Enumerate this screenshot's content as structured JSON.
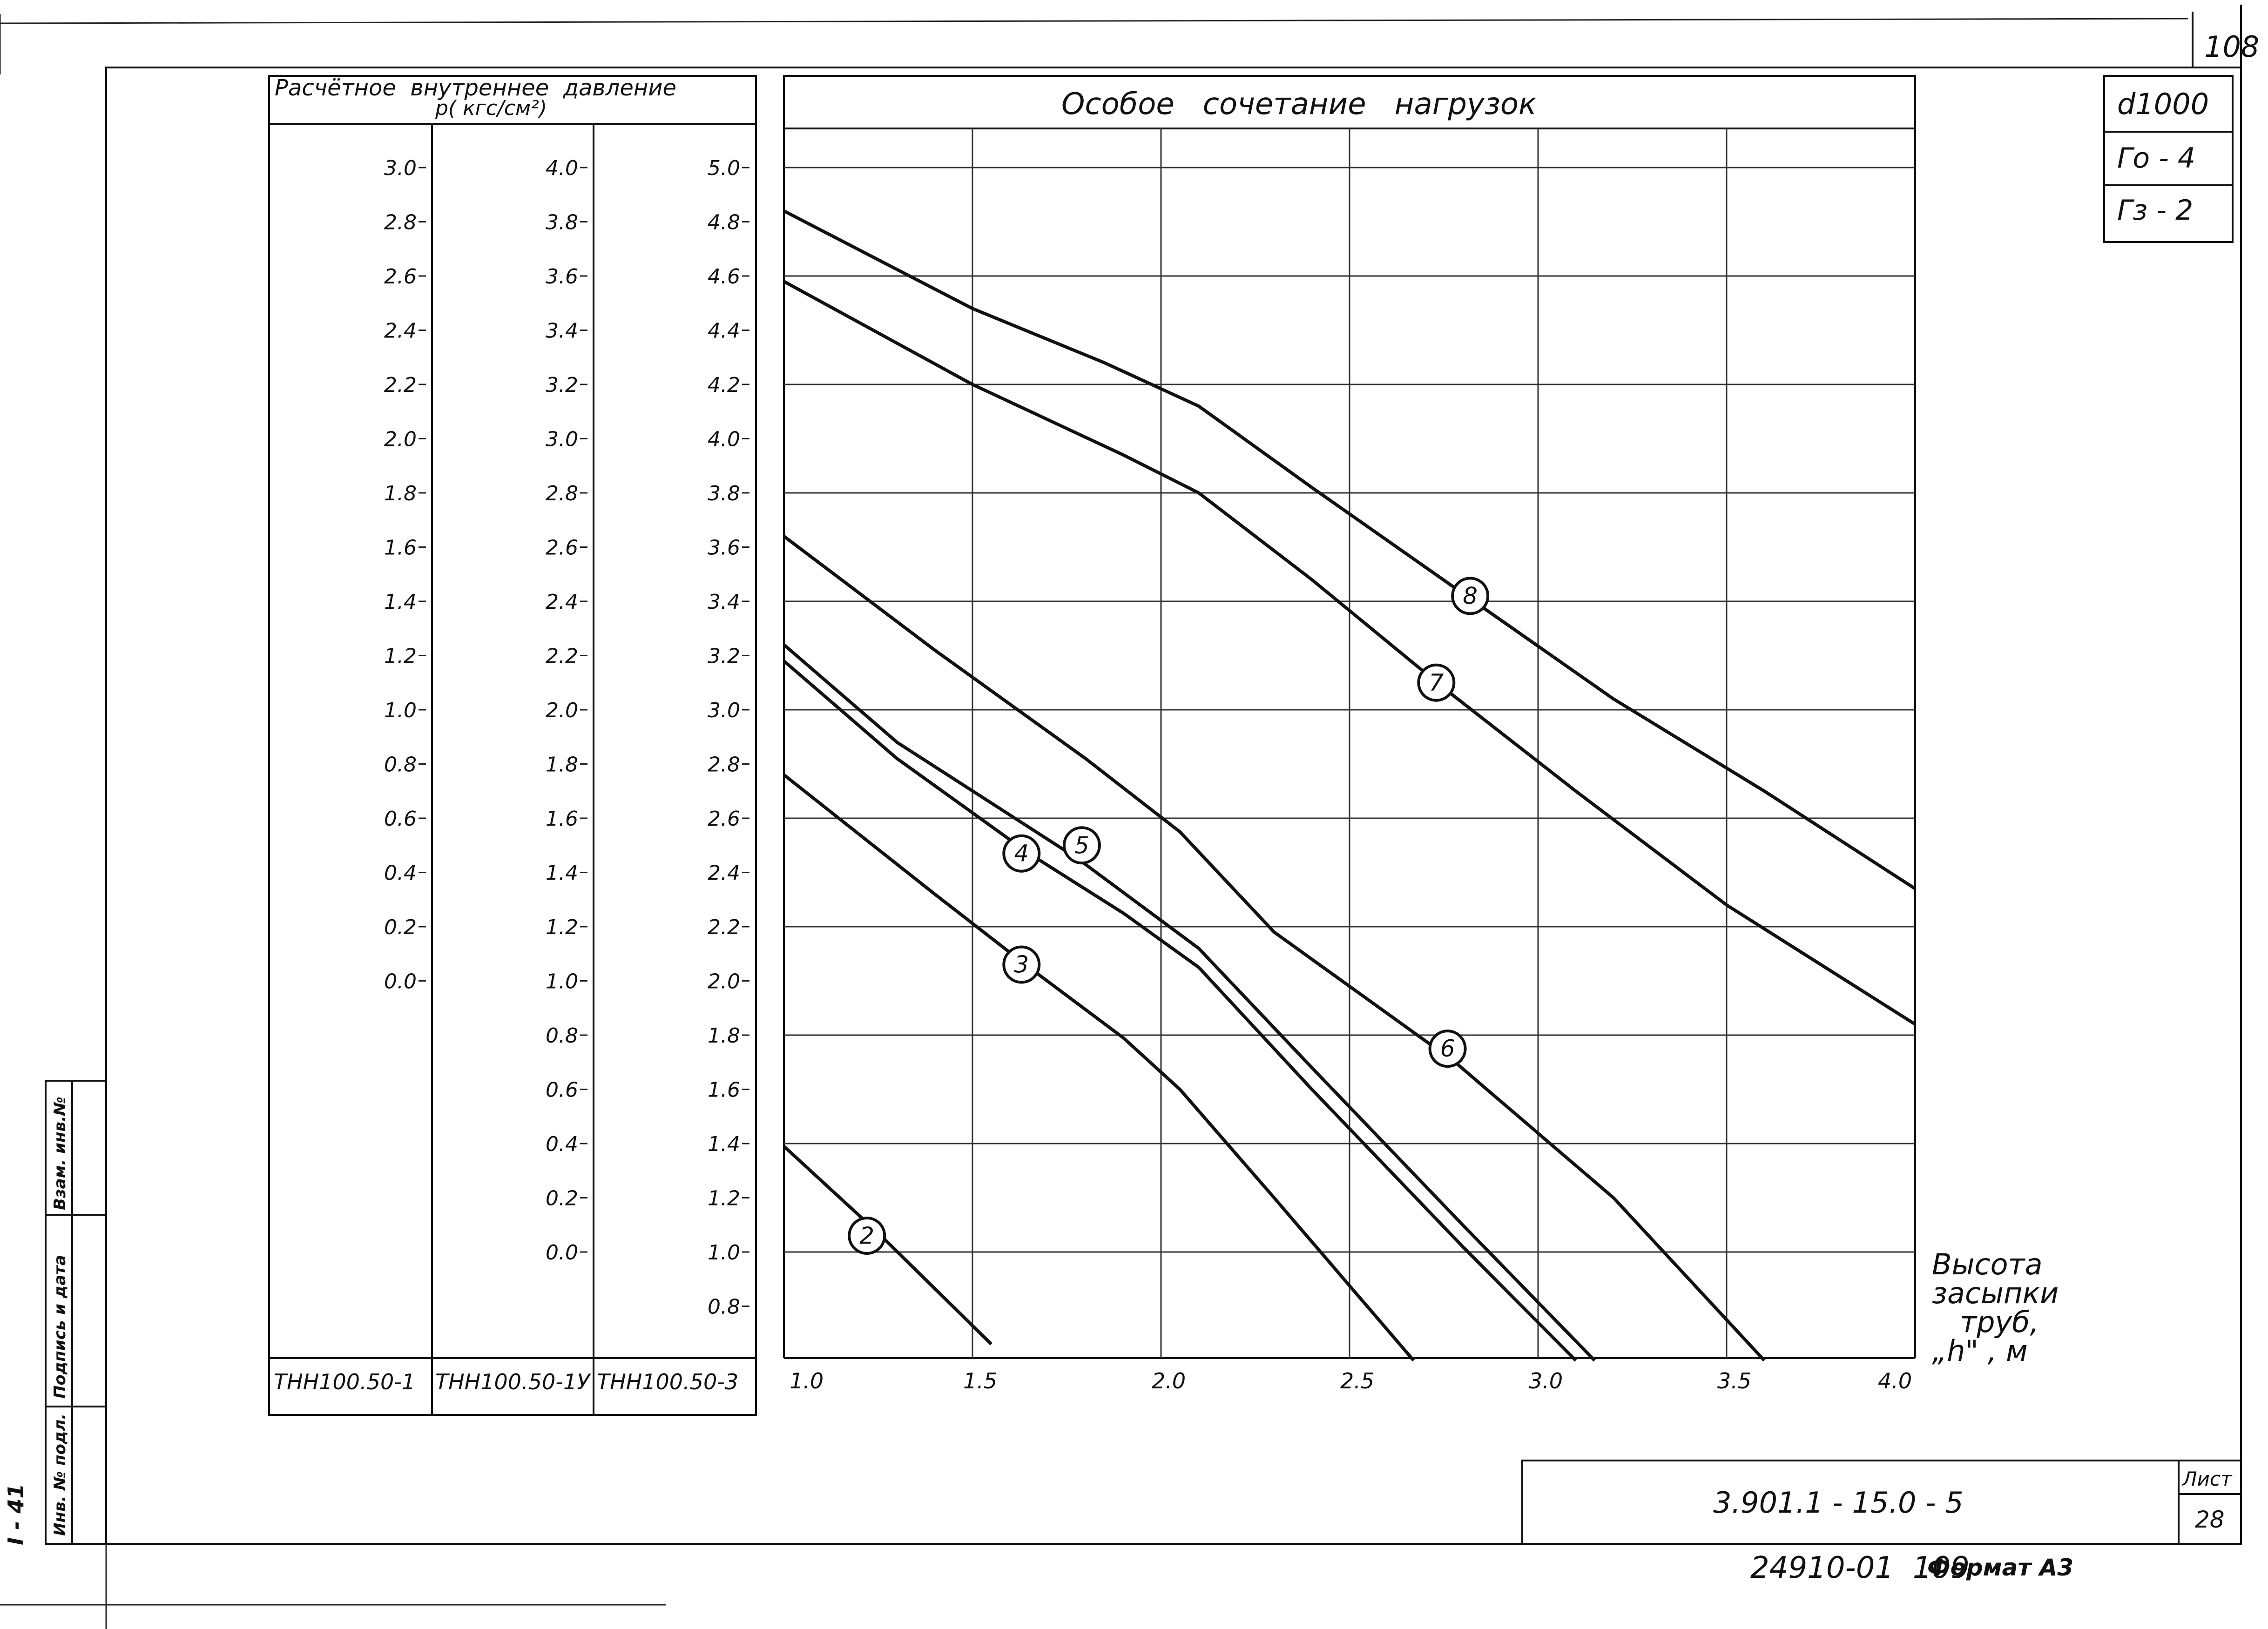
{
  "sheet_corner_number": "108",
  "pressure_header": {
    "line1": "Расчётное  внутреннее  давление",
    "line2": "p( кгс/см²)"
  },
  "chart_header": "Особое   сочетание   нагрузок",
  "spec_box": [
    "d1000",
    "Го - 4",
    "Гз - 2"
  ],
  "scales": [
    {
      "name": "ТНН100.50-1",
      "ticks": [
        "3.0",
        "2.8",
        "2.6",
        "2.4",
        "2.2",
        "2.0",
        "1.8",
        "1.6",
        "1.4",
        "1.2",
        "1.0",
        "0.8",
        "0.6",
        "0.4",
        "0.2",
        "0.0"
      ]
    },
    {
      "name": "ТНН100.50-1У",
      "ticks": [
        "4.0",
        "3.8",
        "3.6",
        "3.4",
        "3.2",
        "3.0",
        "2.8",
        "2.6",
        "2.4",
        "2.2",
        "2.0",
        "1.8",
        "1.6",
        "1.4",
        "1.2",
        "1.0",
        "0.8",
        "0.6",
        "0.4",
        "0.2",
        "0.0"
      ]
    },
    {
      "name": "ТНН100.50-3",
      "ticks": [
        "5.0",
        "4.8",
        "4.6",
        "4.4",
        "4.2",
        "4.0",
        "3.8",
        "3.6",
        "3.4",
        "3.2",
        "3.0",
        "2.8",
        "2.6",
        "2.4",
        "2.2",
        "2.0",
        "1.8",
        "1.6",
        "1.4",
        "1.2",
        "1.0",
        "0.8"
      ]
    }
  ],
  "xaxis_title": [
    "Высота",
    "засыпки",
    "труб,",
    "„h\" , м"
  ],
  "side_stamp": [
    "Взам. инв.№",
    "Подпись и дата",
    "Инв. № подл."
  ],
  "side_code": "I - 41",
  "title_block": {
    "document": "3.901.1 - 15.0 - 5",
    "sheet_label": "Лист",
    "sheet_number": "28"
  },
  "footer": {
    "code": "24910-01  109",
    "format": "Формат А3"
  },
  "chart_data": {
    "type": "line",
    "title": "Особое   сочетание   нагрузок",
    "xlabel": "Высота засыпки труб, „h\" , м",
    "ylabel": "",
    "xlim": [
      1.0,
      4.0
    ],
    "ylim": [
      0.8,
      5.0
    ],
    "xticks": [
      "1.0",
      "1.5",
      "2.0",
      "2.5",
      "3.0",
      "3.5",
      "4.0"
    ],
    "series": [
      {
        "name": "2",
        "x": [
          1.0,
          1.25,
          1.55
        ],
        "y": [
          1.39,
          1.07,
          0.66
        ]
      },
      {
        "name": "3",
        "x": [
          1.0,
          1.4,
          1.65,
          1.9,
          2.05,
          2.3,
          2.67
        ],
        "y": [
          2.76,
          2.32,
          2.05,
          1.79,
          1.6,
          1.2,
          0.6
        ]
      },
      {
        "name": "4",
        "x": [
          1.0,
          1.3,
          1.65,
          1.9,
          2.1,
          2.4,
          2.8,
          3.1
        ],
        "y": [
          3.18,
          2.82,
          2.47,
          2.25,
          2.05,
          1.6,
          1.02,
          0.6
        ]
      },
      {
        "name": "5",
        "x": [
          1.0,
          1.3,
          1.78,
          2.1,
          2.4,
          2.8,
          3.15
        ],
        "y": [
          3.24,
          2.88,
          2.45,
          2.12,
          1.68,
          1.1,
          0.6
        ]
      },
      {
        "name": "6",
        "x": [
          1.0,
          1.4,
          1.8,
          2.05,
          2.3,
          2.78,
          3.2,
          3.6
        ],
        "y": [
          3.64,
          3.22,
          2.82,
          2.55,
          2.18,
          1.7,
          1.2,
          0.6
        ]
      },
      {
        "name": "7",
        "x": [
          1.0,
          1.5,
          1.9,
          2.1,
          2.4,
          2.75,
          3.1,
          3.5,
          4.0
        ],
        "y": [
          4.58,
          4.2,
          3.94,
          3.8,
          3.48,
          3.08,
          2.7,
          2.28,
          1.84
        ]
      },
      {
        "name": "8",
        "x": [
          1.0,
          1.5,
          1.85,
          2.1,
          2.4,
          2.82,
          3.2,
          3.6,
          4.0
        ],
        "y": [
          4.84,
          4.48,
          4.28,
          4.12,
          3.82,
          3.41,
          3.04,
          2.7,
          2.34
        ]
      }
    ]
  }
}
